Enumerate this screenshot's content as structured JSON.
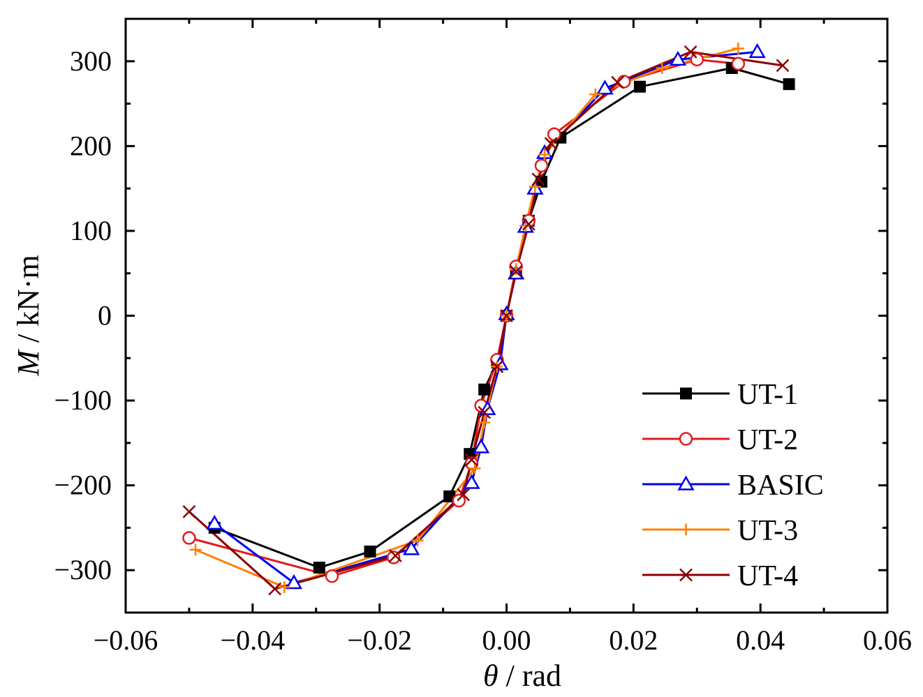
{
  "chart_data": {
    "type": "line",
    "title": "",
    "xlabel_symbol": "θ",
    "xlabel_unit": " / rad",
    "ylabel_symbol": "M",
    "ylabel_unit": " / kN·m",
    "xlim": [
      -0.06,
      0.06
    ],
    "ylim": [
      -350,
      350
    ],
    "x_ticks": [
      -0.06,
      -0.04,
      -0.02,
      0.0,
      0.02,
      0.04,
      0.06
    ],
    "x_tick_labels": [
      "−0.06",
      "−0.04",
      "−0.02",
      "0.00",
      "0.02",
      "0.04",
      "0.06"
    ],
    "y_ticks": [
      -300,
      -200,
      -100,
      0,
      100,
      200,
      300
    ],
    "y_tick_labels": [
      "−300",
      "−200",
      "−100",
      "0",
      "100",
      "200",
      "300"
    ],
    "grid": false,
    "legend_position": "bottom-right",
    "series": [
      {
        "name": "UT-1",
        "color": "#000000",
        "marker": "square-filled",
        "x": [
          -0.046,
          -0.0295,
          -0.0215,
          -0.009,
          -0.0058,
          -0.0035,
          -0.0015,
          0.0,
          0.0015,
          0.0035,
          0.0055,
          0.0085,
          0.021,
          0.0355,
          0.0445
        ],
        "y": [
          -250,
          -297,
          -278,
          -213,
          -163,
          -87,
          -55,
          0,
          55,
          112,
          158,
          210,
          270,
          292,
          273
        ]
      },
      {
        "name": "UT-2",
        "color": "#e41a1c",
        "marker": "circle-open",
        "x": [
          -0.05,
          -0.0275,
          -0.0178,
          -0.0075,
          -0.0055,
          -0.004,
          -0.0015,
          0.0,
          0.0015,
          0.0035,
          0.0055,
          0.0075,
          0.0185,
          0.03,
          0.0365
        ],
        "y": [
          -262,
          -307,
          -285,
          -218,
          -174,
          -106,
          -52,
          0,
          58,
          112,
          177,
          214,
          276,
          302,
          297
        ]
      },
      {
        "name": "BASIC",
        "color": "#0000ee",
        "marker": "triangle-open",
        "x": [
          -0.046,
          -0.0335,
          -0.015,
          -0.0055,
          -0.004,
          -0.003,
          -0.001,
          0.0,
          0.0015,
          0.003,
          0.0045,
          0.006,
          0.0155,
          0.027,
          0.0395
        ],
        "y": [
          -245,
          -315,
          -275,
          -197,
          -155,
          -110,
          -57,
          2,
          50,
          105,
          150,
          192,
          268,
          302,
          311
        ]
      },
      {
        "name": "UT-3",
        "color": "#ff7f00",
        "marker": "plus",
        "x": [
          -0.049,
          -0.035,
          -0.014,
          -0.005,
          -0.0035,
          -0.0015,
          0.0,
          0.0015,
          0.003,
          0.0045,
          0.006,
          0.014,
          0.0245,
          0.0365
        ],
        "y": [
          -276,
          -320,
          -265,
          -180,
          -126,
          -60,
          0,
          55,
          106,
          152,
          190,
          261,
          292,
          315
        ]
      },
      {
        "name": "UT-4",
        "color": "#8b0000",
        "marker": "x",
        "x": [
          -0.05,
          -0.0365,
          -0.0175,
          -0.0068,
          -0.0055,
          -0.0035,
          -0.0015,
          0.0,
          0.0015,
          0.0035,
          0.005,
          0.007,
          0.0175,
          0.029,
          0.0435
        ],
        "y": [
          -231,
          -322,
          -283,
          -211,
          -170,
          -114,
          -60,
          0,
          52,
          108,
          161,
          203,
          275,
          311,
          295
        ]
      }
    ]
  }
}
